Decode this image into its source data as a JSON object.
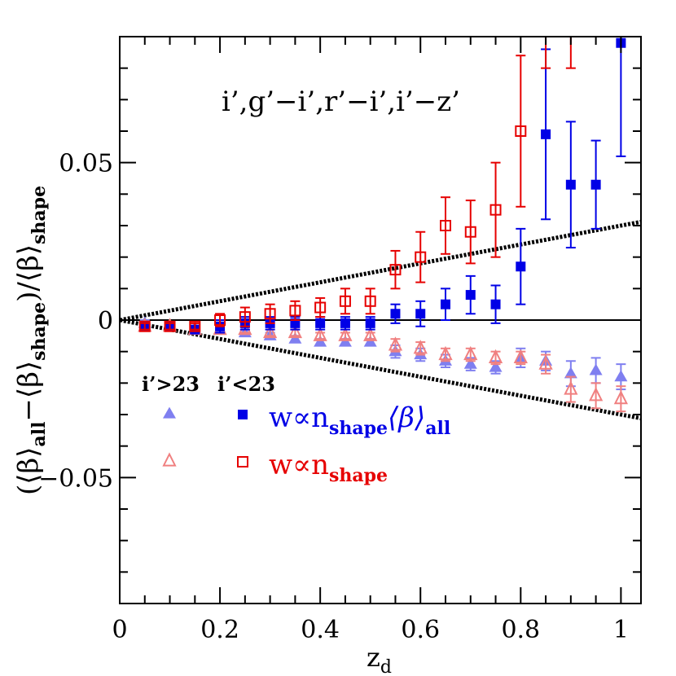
{
  "chart_data": {
    "type": "scatter",
    "xlabel": "z",
    "xlabel_sub": "d",
    "ylabel_parts": [
      "(⟨β⟩",
      "all",
      "−⟨β⟩",
      "shape",
      ")/⟨β⟩",
      "shape"
    ],
    "xlim": [
      0,
      1.04
    ],
    "ylim": [
      -0.09,
      0.09
    ],
    "x_ticks": [
      {
        "value": 0,
        "label": "0"
      },
      {
        "value": 0.2,
        "label": "0.2"
      },
      {
        "value": 0.4,
        "label": "0.4"
      },
      {
        "value": 0.6,
        "label": "0.6"
      },
      {
        "value": 0.8,
        "label": "0.8"
      },
      {
        "value": 1.0,
        "label": "1"
      }
    ],
    "y_ticks": [
      {
        "value": -0.05,
        "label": "−0.05"
      },
      {
        "value": 0,
        "label": "0"
      },
      {
        "value": 0.05,
        "label": "0.05"
      }
    ],
    "annotation": "i’,g’−i’,r’−i’,i’−z’",
    "legend": {
      "faint_header": "i’>23",
      "dark_header": "i’<23",
      "label_weighted": {
        "main": "w∝n",
        "sub": "shape",
        "suffix": "⟨β⟩",
        "suffix_sub": "all"
      },
      "label_shape": {
        "main": "w∝n",
        "sub": "shape"
      }
    },
    "colors": {
      "blue_dark": "#0000e6",
      "blue_light": "#7f7ff0",
      "red_dark": "#e60000",
      "red_light": "#f08080"
    },
    "reference_lines": {
      "zero": 0,
      "upper_slope": 0.03,
      "lower_slope": -0.03
    },
    "series": [
      {
        "marker": "filled-square",
        "color": "#0000e6",
        "points": [
          {
            "x": 0.05,
            "y": -0.002,
            "err": 0.001
          },
          {
            "x": 0.1,
            "y": -0.002,
            "err": 0.001
          },
          {
            "x": 0.15,
            "y": -0.003,
            "err": 0.001
          },
          {
            "x": 0.2,
            "y": -0.002,
            "err": 0.002
          },
          {
            "x": 0.25,
            "y": -0.001,
            "err": 0.002
          },
          {
            "x": 0.3,
            "y": -0.001,
            "err": 0.002
          },
          {
            "x": 0.35,
            "y": -0.001,
            "err": 0.002
          },
          {
            "x": 0.4,
            "y": -0.001,
            "err": 0.002
          },
          {
            "x": 0.45,
            "y": -0.001,
            "err": 0.002
          },
          {
            "x": 0.5,
            "y": -0.001,
            "err": 0.002
          },
          {
            "x": 0.55,
            "y": 0.002,
            "err": 0.003
          },
          {
            "x": 0.6,
            "y": 0.002,
            "err": 0.004
          },
          {
            "x": 0.65,
            "y": 0.005,
            "err": 0.005
          },
          {
            "x": 0.7,
            "y": 0.008,
            "err": 0.006
          },
          {
            "x": 0.75,
            "y": 0.005,
            "err": 0.006
          },
          {
            "x": 0.8,
            "y": 0.017,
            "err": 0.012
          },
          {
            "x": 0.85,
            "y": 0.059,
            "err": 0.027
          },
          {
            "x": 0.9,
            "y": 0.043,
            "err": 0.02
          },
          {
            "x": 0.95,
            "y": 0.043,
            "err": 0.014
          },
          {
            "x": 1.0,
            "y": 0.088,
            "err": 0.036
          }
        ]
      },
      {
        "marker": "open-square",
        "color": "#e60000",
        "points": [
          {
            "x": 0.05,
            "y": -0.002,
            "err": 0.001
          },
          {
            "x": 0.1,
            "y": -0.002,
            "err": 0.001
          },
          {
            "x": 0.15,
            "y": -0.002,
            "err": 0.001
          },
          {
            "x": 0.2,
            "y": 0.0,
            "err": 0.002
          },
          {
            "x": 0.25,
            "y": 0.001,
            "err": 0.003
          },
          {
            "x": 0.3,
            "y": 0.002,
            "err": 0.003
          },
          {
            "x": 0.35,
            "y": 0.003,
            "err": 0.003
          },
          {
            "x": 0.4,
            "y": 0.004,
            "err": 0.003
          },
          {
            "x": 0.45,
            "y": 0.006,
            "err": 0.004
          },
          {
            "x": 0.5,
            "y": 0.006,
            "err": 0.004
          },
          {
            "x": 0.55,
            "y": 0.016,
            "err": 0.006
          },
          {
            "x": 0.6,
            "y": 0.02,
            "err": 0.008
          },
          {
            "x": 0.65,
            "y": 0.03,
            "err": 0.009
          },
          {
            "x": 0.7,
            "y": 0.028,
            "err": 0.01
          },
          {
            "x": 0.75,
            "y": 0.035,
            "err": 0.015
          },
          {
            "x": 0.8,
            "y": 0.06,
            "err": 0.024
          },
          {
            "x": 0.85,
            "y": 0.1,
            "err": 0.02
          },
          {
            "x": 0.9,
            "y": 0.1,
            "err": 0.02
          }
        ]
      },
      {
        "marker": "filled-triangle",
        "color": "#7f7ff0",
        "points": [
          {
            "x": 0.05,
            "y": -0.001,
            "err": 0.001
          },
          {
            "x": 0.1,
            "y": -0.002,
            "err": 0.001
          },
          {
            "x": 0.15,
            "y": -0.003,
            "err": 0.001
          },
          {
            "x": 0.2,
            "y": -0.003,
            "err": 0.001
          },
          {
            "x": 0.25,
            "y": -0.004,
            "err": 0.001
          },
          {
            "x": 0.3,
            "y": -0.005,
            "err": 0.001
          },
          {
            "x": 0.35,
            "y": -0.006,
            "err": 0.001
          },
          {
            "x": 0.4,
            "y": -0.007,
            "err": 0.001
          },
          {
            "x": 0.45,
            "y": -0.007,
            "err": 0.001
          },
          {
            "x": 0.5,
            "y": -0.007,
            "err": 0.001
          },
          {
            "x": 0.55,
            "y": -0.01,
            "err": 0.002
          },
          {
            "x": 0.6,
            "y": -0.011,
            "err": 0.002
          },
          {
            "x": 0.65,
            "y": -0.013,
            "err": 0.002
          },
          {
            "x": 0.7,
            "y": -0.014,
            "err": 0.002
          },
          {
            "x": 0.75,
            "y": -0.015,
            "err": 0.002
          },
          {
            "x": 0.8,
            "y": -0.012,
            "err": 0.003
          },
          {
            "x": 0.85,
            "y": -0.013,
            "err": 0.003
          },
          {
            "x": 0.9,
            "y": -0.017,
            "err": 0.004
          },
          {
            "x": 0.95,
            "y": -0.016,
            "err": 0.004
          },
          {
            "x": 1.0,
            "y": -0.018,
            "err": 0.004
          }
        ]
      },
      {
        "marker": "open-triangle",
        "color": "#f08080",
        "points": [
          {
            "x": 0.05,
            "y": -0.002,
            "err": 0.001
          },
          {
            "x": 0.1,
            "y": -0.002,
            "err": 0.001
          },
          {
            "x": 0.15,
            "y": -0.003,
            "err": 0.001
          },
          {
            "x": 0.2,
            "y": -0.003,
            "err": 0.001
          },
          {
            "x": 0.25,
            "y": -0.003,
            "err": 0.001
          },
          {
            "x": 0.3,
            "y": -0.004,
            "err": 0.001
          },
          {
            "x": 0.35,
            "y": -0.004,
            "err": 0.001
          },
          {
            "x": 0.4,
            "y": -0.005,
            "err": 0.001
          },
          {
            "x": 0.45,
            "y": -0.005,
            "err": 0.001
          },
          {
            "x": 0.5,
            "y": -0.005,
            "err": 0.001
          },
          {
            "x": 0.55,
            "y": -0.008,
            "err": 0.002
          },
          {
            "x": 0.6,
            "y": -0.009,
            "err": 0.002
          },
          {
            "x": 0.65,
            "y": -0.011,
            "err": 0.002
          },
          {
            "x": 0.7,
            "y": -0.011,
            "err": 0.002
          },
          {
            "x": 0.75,
            "y": -0.012,
            "err": 0.002
          },
          {
            "x": 0.8,
            "y": -0.012,
            "err": 0.002
          },
          {
            "x": 0.85,
            "y": -0.014,
            "err": 0.003
          },
          {
            "x": 0.9,
            "y": -0.022,
            "err": 0.004
          },
          {
            "x": 0.95,
            "y": -0.024,
            "err": 0.004
          },
          {
            "x": 1.0,
            "y": -0.025,
            "err": 0.004
          }
        ]
      }
    ]
  }
}
